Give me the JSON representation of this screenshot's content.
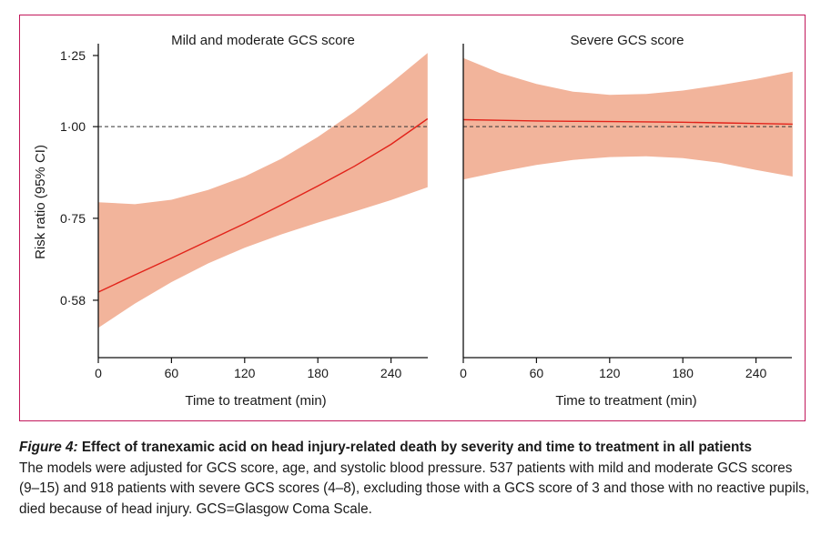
{
  "colors": {
    "frame": "#c2185b",
    "ci_fill": "#f2b49b",
    "line": "#e2231a",
    "reference": "#333333"
  },
  "chart_data": [
    {
      "type": "line",
      "title": "Mild and moderate GCS score",
      "xlabel": "Time to treatment (min)",
      "ylabel": "Risk ratio (95% CI)",
      "scale_y": "log",
      "xlim": [
        0,
        270
      ],
      "ylim": [
        0.49,
        1.25
      ],
      "xticks": [
        0,
        60,
        120,
        180,
        240
      ],
      "yticks": [
        0.58,
        0.75,
        1.0,
        1.25
      ],
      "ytick_labels": [
        "0·58",
        "0·75",
        "1·00",
        "1·25"
      ],
      "reference_line": 1.0,
      "x": [
        0,
        30,
        60,
        90,
        120,
        150,
        180,
        210,
        240,
        270
      ],
      "estimate": [
        0.595,
        0.628,
        0.662,
        0.699,
        0.738,
        0.782,
        0.83,
        0.883,
        0.946,
        1.025
      ],
      "ci_lower": [
        0.532,
        0.574,
        0.614,
        0.651,
        0.684,
        0.713,
        0.74,
        0.766,
        0.794,
        0.827
      ],
      "ci_upper": [
        0.789,
        0.784,
        0.795,
        0.82,
        0.855,
        0.904,
        0.968,
        1.048,
        1.146,
        1.26
      ]
    },
    {
      "type": "line",
      "title": "Severe GCS score",
      "xlabel": "Time to treatment (min)",
      "scale_y": "log",
      "xlim": [
        0,
        270
      ],
      "ylim": [
        0.49,
        1.25
      ],
      "xticks": [
        0,
        60,
        120,
        180,
        240
      ],
      "reference_line": 1.0,
      "x": [
        0,
        30,
        60,
        90,
        120,
        150,
        180,
        210,
        240,
        270
      ],
      "estimate": [
        1.022,
        1.02,
        1.018,
        1.017,
        1.016,
        1.015,
        1.014,
        1.012,
        1.01,
        1.008
      ],
      "ci_lower": [
        0.847,
        0.868,
        0.887,
        0.901,
        0.909,
        0.911,
        0.906,
        0.893,
        0.873,
        0.855
      ],
      "ci_upper": [
        1.24,
        1.183,
        1.143,
        1.116,
        1.105,
        1.108,
        1.12,
        1.139,
        1.161,
        1.188
      ]
    }
  ],
  "caption": {
    "label": "Figure 4:",
    "title": "Effect of tranexamic acid on head injury-related death by severity and time to treatment in all patients",
    "body": "The models were adjusted for GCS score, age, and systolic blood pressure. 537 patients with mild and moderate GCS scores (9–15) and 918 patients with severe GCS scores (4–8), excluding those with a GCS score of 3 and those with no reactive pupils, died because of head injury. GCS=Glasgow Coma Scale."
  }
}
